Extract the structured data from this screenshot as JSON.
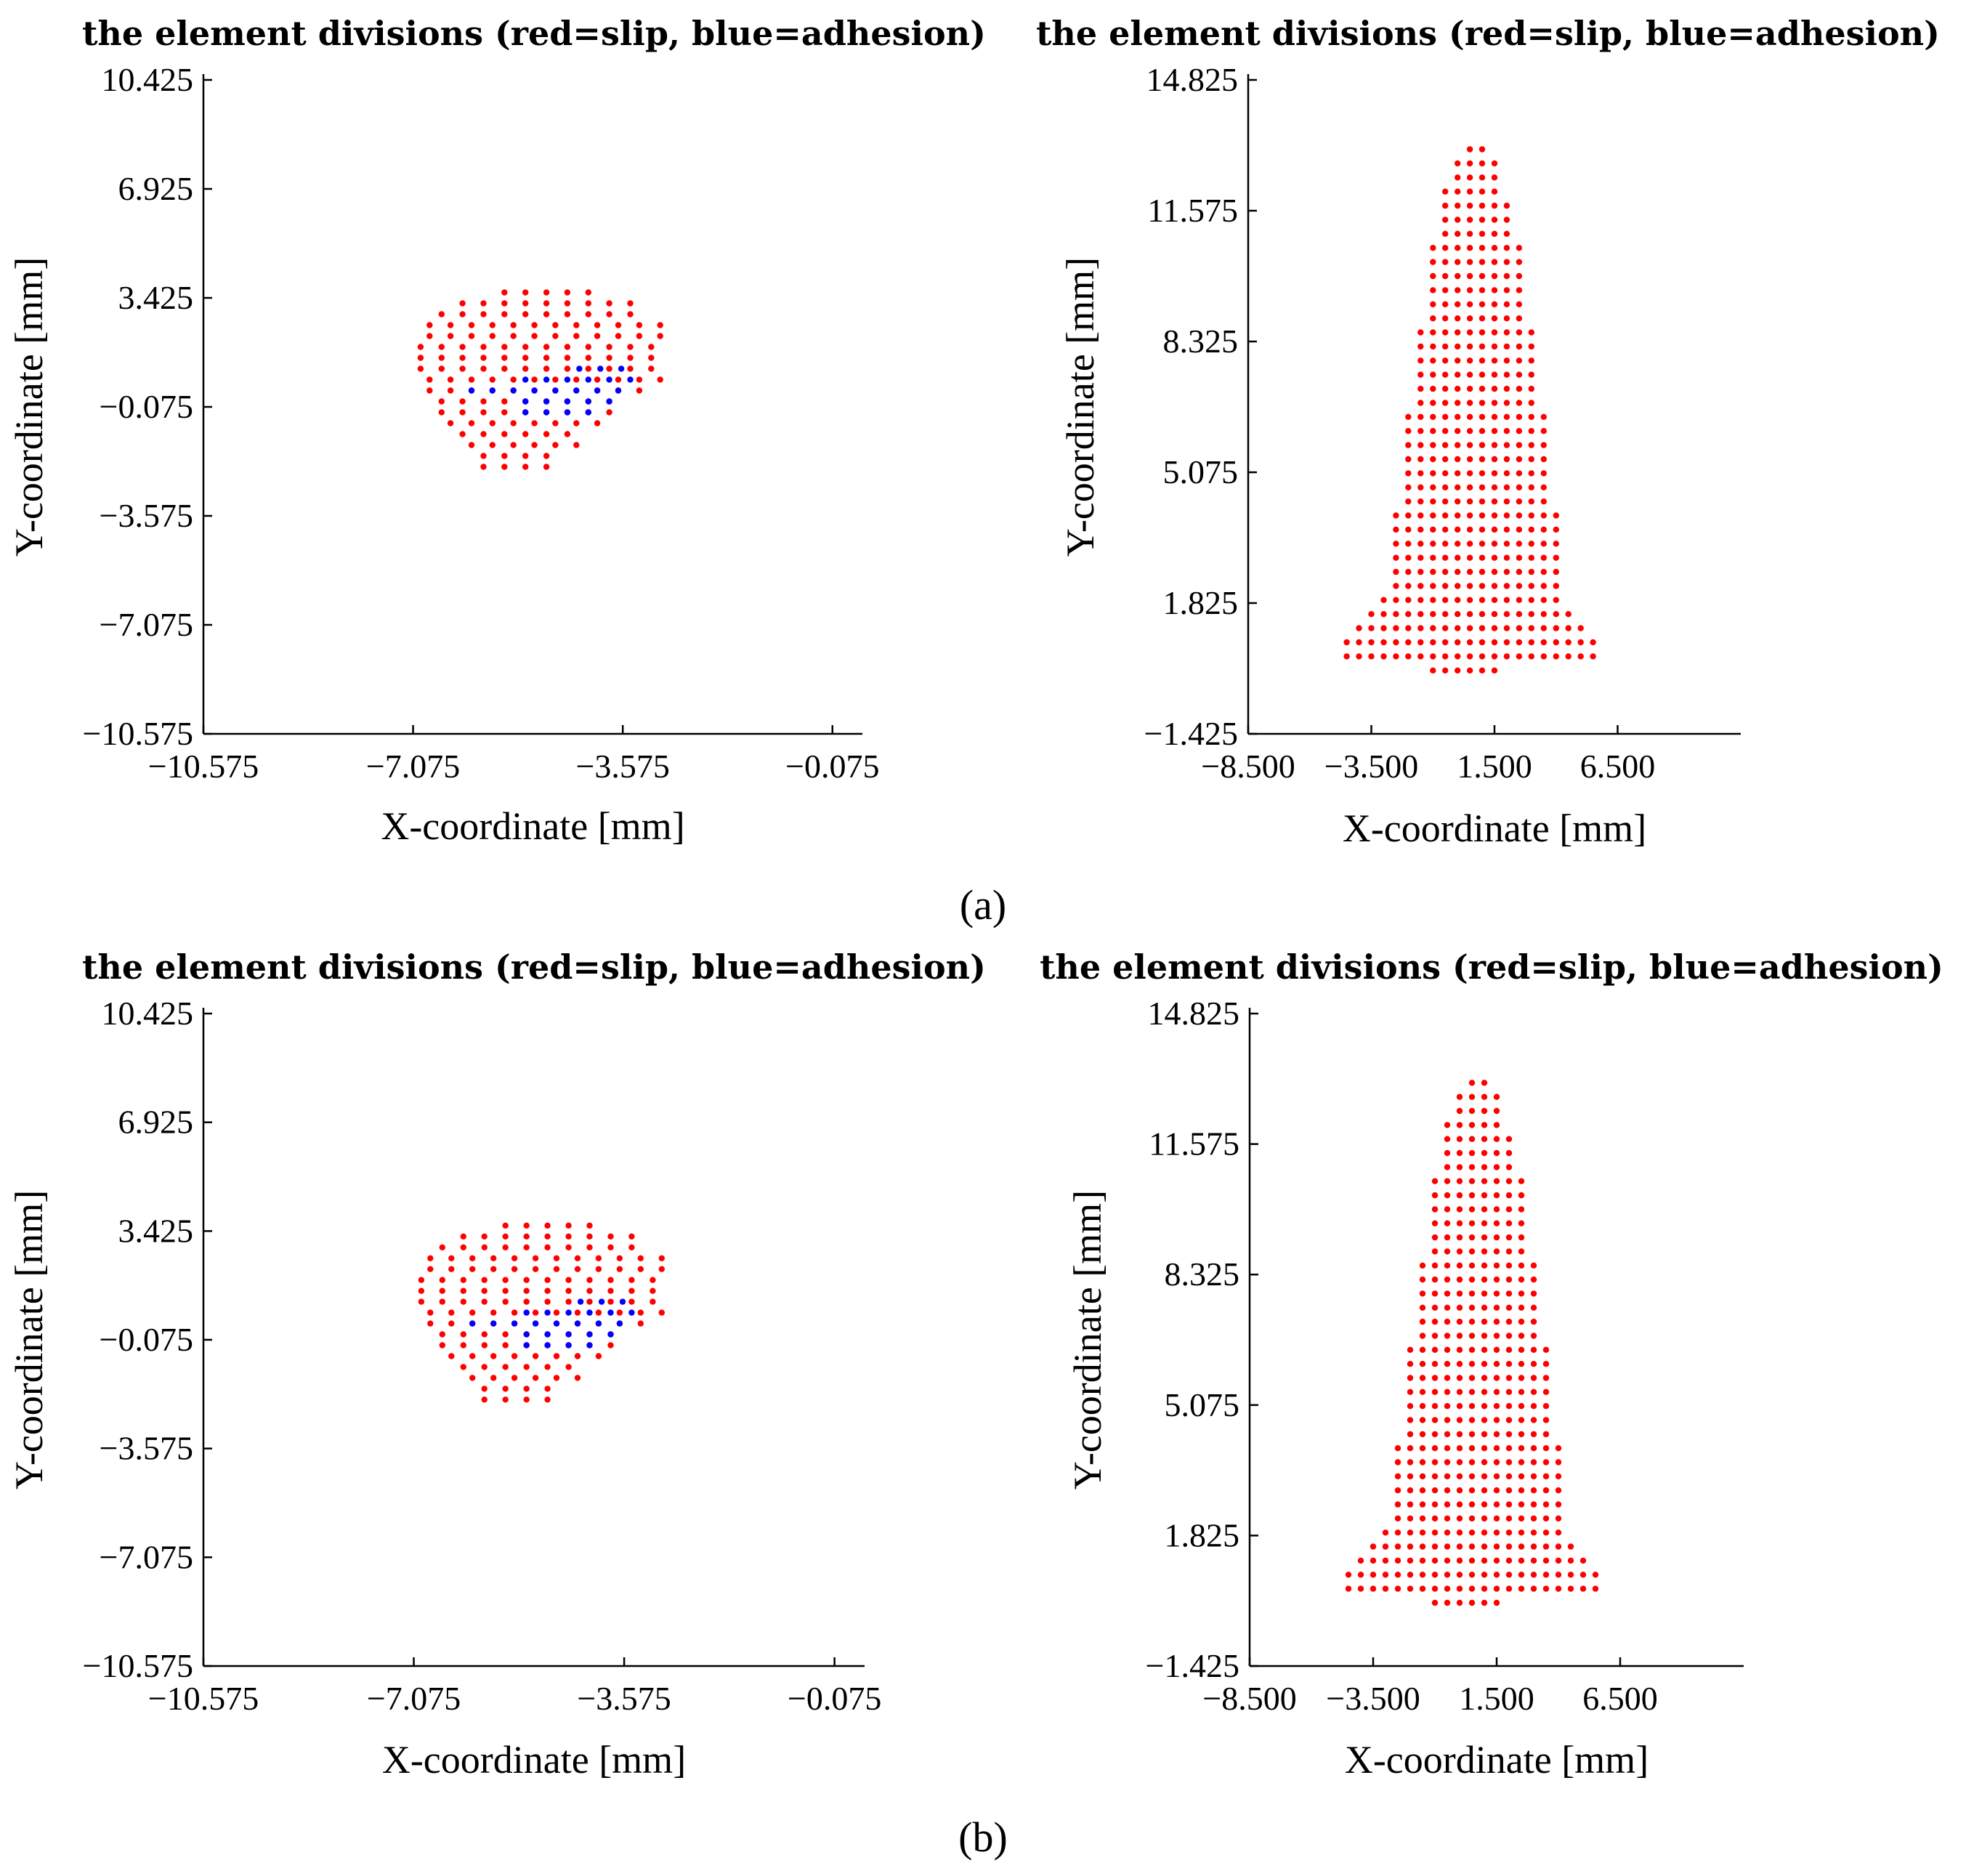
{
  "figure": {
    "panel_labels": [
      "(a)",
      "(b)"
    ]
  },
  "colors": {
    "slip": "#ff0000",
    "adhesion": "#0000ff",
    "axis": "#000000"
  },
  "chart_data": [
    {
      "type": "scatter",
      "id": "a_left",
      "title": "the element divisions (red=slip, blue=adhesion)",
      "xlabel": "X-coordinate [mm]",
      "ylabel": "Y-coordinate [mm]",
      "xlim": [
        -10.575,
        0.425
      ],
      "ylim": [
        -10.575,
        10.425
      ],
      "xticks": [
        -10.575,
        -7.075,
        -3.575,
        -0.075
      ],
      "xtick_labels": [
        "−10.575",
        "−7.075",
        "−3.575",
        "−0.075"
      ],
      "yticks": [
        -10.575,
        -7.075,
        -3.575,
        -0.075,
        3.425,
        6.925,
        10.425
      ],
      "ytick_labels": [
        "−10.575",
        "−7.075",
        "−3.575",
        "−0.075",
        "3.425",
        "6.925",
        "10.425"
      ],
      "grid_step": 0.35,
      "slip_rows": [
        {
          "y": 3.6,
          "x": [
            -5.55,
            -4.15
          ]
        },
        {
          "y": 3.25,
          "x": [
            -6.25,
            -3.45
          ]
        },
        {
          "y": 2.9,
          "x": [
            -6.6,
            -3.45
          ]
        },
        {
          "y": 2.55,
          "x": [
            -6.8,
            -3.1
          ]
        },
        {
          "y": 2.2,
          "x": [
            -6.8,
            -3.1
          ]
        },
        {
          "y": 1.85,
          "x": [
            -6.95,
            -3.1
          ]
        },
        {
          "y": 1.5,
          "x": [
            -6.95,
            -3.1
          ]
        },
        {
          "y": 1.15,
          "x": [
            -6.95,
            -3.1
          ]
        },
        {
          "y": 0.8,
          "x": [
            -6.8,
            -3.1
          ]
        },
        {
          "y": 0.45,
          "x": [
            -6.8,
            -3.45
          ]
        },
        {
          "y": 0.1,
          "x": [
            -6.6,
            -3.8
          ]
        },
        {
          "y": -0.25,
          "x": [
            -6.6,
            -3.8
          ]
        },
        {
          "y": -0.6,
          "x": [
            -6.45,
            -4.15
          ]
        },
        {
          "y": -0.95,
          "x": [
            -6.25,
            -4.5
          ]
        },
        {
          "y": -1.3,
          "x": [
            -6.1,
            -4.5
          ]
        },
        {
          "y": -1.65,
          "x": [
            -5.9,
            -4.85
          ]
        },
        {
          "y": -2.0,
          "x": [
            -5.9,
            -4.85
          ]
        }
      ],
      "adhesion_rows": [
        {
          "y": 1.15,
          "x": [
            -4.3,
            -3.45
          ]
        },
        {
          "y": 0.8,
          "x": [
            -5.2,
            -3.45
          ]
        },
        {
          "y": 0.45,
          "x": [
            -6.1,
            -3.8
          ]
        },
        {
          "y": 0.1,
          "x": [
            -5.2,
            -3.8
          ]
        },
        {
          "y": -0.25,
          "x": [
            -5.2,
            -4.15
          ]
        }
      ]
    },
    {
      "type": "scatter",
      "id": "a_right",
      "title": "the element divisions (red=slip, blue=adhesion)",
      "xlabel": "X-coordinate [mm]",
      "ylabel": "Y-coordinate [mm]",
      "xlim": [
        -8.5,
        11.5
      ],
      "ylim": [
        -1.425,
        14.825
      ],
      "xticks": [
        -8.5,
        -3.5,
        1.5,
        6.5
      ],
      "xtick_labels": [
        "−8.500",
        "−3.500",
        "1.500",
        "6.500"
      ],
      "yticks": [
        -1.425,
        1.825,
        5.075,
        8.325,
        11.575,
        14.825
      ],
      "ytick_labels": [
        "−1.425",
        "1.825",
        "5.075",
        "8.325",
        "11.575",
        "14.825"
      ],
      "grid_step": 0.5,
      "slip_rows": [
        {
          "y": 13.1,
          "x": [
            0.5,
            1.0
          ]
        },
        {
          "y": 12.75,
          "x": [
            0,
            1.5
          ]
        },
        {
          "y": 12.4,
          "x": [
            0,
            1.5
          ]
        },
        {
          "y": 12.05,
          "x": [
            -0.5,
            1.5
          ]
        },
        {
          "y": 11.7,
          "x": [
            -0.5,
            2.0
          ]
        },
        {
          "y": 11.35,
          "x": [
            -0.5,
            2.0
          ]
        },
        {
          "y": 11.0,
          "x": [
            -0.5,
            2.0
          ]
        },
        {
          "y": 10.65,
          "x": [
            -1.0,
            2.5
          ]
        },
        {
          "y": 10.3,
          "x": [
            -1.0,
            2.5
          ]
        },
        {
          "y": 9.95,
          "x": [
            -1.0,
            2.5
          ]
        },
        {
          "y": 9.6,
          "x": [
            -1.0,
            2.5
          ]
        },
        {
          "y": 9.25,
          "x": [
            -1.0,
            2.5
          ]
        },
        {
          "y": 8.9,
          "x": [
            -1.0,
            2.5
          ]
        },
        {
          "y": 8.55,
          "x": [
            -1.5,
            3.0
          ]
        },
        {
          "y": 8.2,
          "x": [
            -1.5,
            3.0
          ]
        },
        {
          "y": 7.85,
          "x": [
            -1.5,
            3.0
          ]
        },
        {
          "y": 7.5,
          "x": [
            -1.5,
            3.0
          ]
        },
        {
          "y": 7.15,
          "x": [
            -1.5,
            3.0
          ]
        },
        {
          "y": 6.8,
          "x": [
            -1.5,
            3.0
          ]
        },
        {
          "y": 6.45,
          "x": [
            -2.0,
            3.5
          ]
        },
        {
          "y": 6.1,
          "x": [
            -2.0,
            3.5
          ]
        },
        {
          "y": 5.75,
          "x": [
            -2.0,
            3.5
          ]
        },
        {
          "y": 5.4,
          "x": [
            -2.0,
            3.5
          ]
        },
        {
          "y": 5.05,
          "x": [
            -2.0,
            3.5
          ]
        },
        {
          "y": 4.7,
          "x": [
            -2.0,
            3.5
          ]
        },
        {
          "y": 4.35,
          "x": [
            -2.0,
            3.5
          ]
        },
        {
          "y": 4.0,
          "x": [
            -2.5,
            4.0
          ]
        },
        {
          "y": 3.65,
          "x": [
            -2.5,
            4.0
          ]
        },
        {
          "y": 3.3,
          "x": [
            -2.5,
            4.0
          ]
        },
        {
          "y": 2.95,
          "x": [
            -2.5,
            4.0
          ]
        },
        {
          "y": 2.6,
          "x": [
            -2.5,
            4.0
          ]
        },
        {
          "y": 2.25,
          "x": [
            -2.5,
            4.0
          ]
        },
        {
          "y": 1.9,
          "x": [
            -3.0,
            4.0
          ]
        },
        {
          "y": 1.55,
          "x": [
            -3.5,
            4.5
          ]
        },
        {
          "y": 1.2,
          "x": [
            -4.0,
            5.0
          ]
        },
        {
          "y": 0.85,
          "x": [
            -4.5,
            5.5
          ]
        },
        {
          "y": 0.5,
          "x": [
            -4.5,
            5.5
          ]
        },
        {
          "y": 0.15,
          "x": [
            -1.0,
            1.5
          ]
        }
      ],
      "adhesion_rows": []
    },
    {
      "type": "scatter",
      "id": "b_left",
      "title": "the element divisions (red=slip, blue=adhesion)",
      "xlabel": "X-coordinate [mm]",
      "ylabel": "Y-coordinate [mm]",
      "xlim": [
        -10.575,
        0.425
      ],
      "ylim": [
        -10.575,
        10.425
      ],
      "xticks": [
        -10.575,
        -7.075,
        -3.575,
        -0.075
      ],
      "xtick_labels": [
        "−10.575",
        "−7.075",
        "−3.575",
        "−0.075"
      ],
      "yticks": [
        -10.575,
        -7.075,
        -3.575,
        -0.075,
        3.425,
        6.925,
        10.425
      ],
      "ytick_labels": [
        "−10.575",
        "−7.075",
        "−3.575",
        "−0.075",
        "3.425",
        "6.925",
        "10.425"
      ],
      "grid_step": 0.35,
      "slip_rows": [
        {
          "y": 3.6,
          "x": [
            -5.55,
            -4.15
          ]
        },
        {
          "y": 3.25,
          "x": [
            -6.25,
            -3.45
          ]
        },
        {
          "y": 2.9,
          "x": [
            -6.6,
            -3.45
          ]
        },
        {
          "y": 2.55,
          "x": [
            -6.8,
            -3.1
          ]
        },
        {
          "y": 2.2,
          "x": [
            -6.8,
            -3.1
          ]
        },
        {
          "y": 1.85,
          "x": [
            -6.95,
            -3.1
          ]
        },
        {
          "y": 1.5,
          "x": [
            -6.95,
            -3.1
          ]
        },
        {
          "y": 1.15,
          "x": [
            -6.95,
            -3.1
          ]
        },
        {
          "y": 0.8,
          "x": [
            -6.8,
            -3.1
          ]
        },
        {
          "y": 0.45,
          "x": [
            -6.8,
            -3.45
          ]
        },
        {
          "y": 0.1,
          "x": [
            -6.6,
            -3.8
          ]
        },
        {
          "y": -0.25,
          "x": [
            -6.6,
            -3.8
          ]
        },
        {
          "y": -0.6,
          "x": [
            -6.45,
            -4.15
          ]
        },
        {
          "y": -0.95,
          "x": [
            -6.25,
            -4.5
          ]
        },
        {
          "y": -1.3,
          "x": [
            -6.1,
            -4.5
          ]
        },
        {
          "y": -1.65,
          "x": [
            -5.9,
            -4.85
          ]
        },
        {
          "y": -2.0,
          "x": [
            -5.9,
            -4.85
          ]
        }
      ],
      "adhesion_rows": [
        {
          "y": 1.15,
          "x": [
            -4.3,
            -3.45
          ]
        },
        {
          "y": 0.8,
          "x": [
            -5.2,
            -3.45
          ]
        },
        {
          "y": 0.45,
          "x": [
            -6.1,
            -3.8
          ]
        },
        {
          "y": 0.1,
          "x": [
            -5.2,
            -3.8
          ]
        },
        {
          "y": -0.25,
          "x": [
            -5.2,
            -4.15
          ]
        }
      ]
    },
    {
      "type": "scatter",
      "id": "b_right",
      "title": "the element divisions (red=slip, blue=adhesion)",
      "xlabel": "X-coordinate [mm]",
      "ylabel": "Y-coordinate [mm]",
      "xlim": [
        -8.5,
        11.5
      ],
      "ylim": [
        -1.425,
        14.825
      ],
      "xticks": [
        -8.5,
        -3.5,
        1.5,
        6.5
      ],
      "xtick_labels": [
        "−8.500",
        "−3.500",
        "1.500",
        "6.500"
      ],
      "yticks": [
        -1.425,
        1.825,
        5.075,
        8.325,
        11.575,
        14.825
      ],
      "ytick_labels": [
        "−1.425",
        "1.825",
        "5.075",
        "8.325",
        "11.575",
        "14.825"
      ],
      "grid_step": 0.5,
      "slip_rows": [
        {
          "y": 13.1,
          "x": [
            0.5,
            1.0
          ]
        },
        {
          "y": 12.75,
          "x": [
            0,
            1.5
          ]
        },
        {
          "y": 12.4,
          "x": [
            0,
            1.5
          ]
        },
        {
          "y": 12.05,
          "x": [
            -0.5,
            1.5
          ]
        },
        {
          "y": 11.7,
          "x": [
            -0.5,
            2.0
          ]
        },
        {
          "y": 11.35,
          "x": [
            -0.5,
            2.0
          ]
        },
        {
          "y": 11.0,
          "x": [
            -0.5,
            2.0
          ]
        },
        {
          "y": 10.65,
          "x": [
            -1.0,
            2.5
          ]
        },
        {
          "y": 10.3,
          "x": [
            -1.0,
            2.5
          ]
        },
        {
          "y": 9.95,
          "x": [
            -1.0,
            2.5
          ]
        },
        {
          "y": 9.6,
          "x": [
            -1.0,
            2.5
          ]
        },
        {
          "y": 9.25,
          "x": [
            -1.0,
            2.5
          ]
        },
        {
          "y": 8.9,
          "x": [
            -1.0,
            2.5
          ]
        },
        {
          "y": 8.55,
          "x": [
            -1.5,
            3.0
          ]
        },
        {
          "y": 8.2,
          "x": [
            -1.5,
            3.0
          ]
        },
        {
          "y": 7.85,
          "x": [
            -1.5,
            3.0
          ]
        },
        {
          "y": 7.5,
          "x": [
            -1.5,
            3.0
          ]
        },
        {
          "y": 7.15,
          "x": [
            -1.5,
            3.0
          ]
        },
        {
          "y": 6.8,
          "x": [
            -1.5,
            3.0
          ]
        },
        {
          "y": 6.45,
          "x": [
            -2.0,
            3.5
          ]
        },
        {
          "y": 6.1,
          "x": [
            -2.0,
            3.5
          ]
        },
        {
          "y": 5.75,
          "x": [
            -2.0,
            3.5
          ]
        },
        {
          "y": 5.4,
          "x": [
            -2.0,
            3.5
          ]
        },
        {
          "y": 5.05,
          "x": [
            -2.0,
            3.5
          ]
        },
        {
          "y": 4.7,
          "x": [
            -2.0,
            3.5
          ]
        },
        {
          "y": 4.35,
          "x": [
            -2.0,
            3.5
          ]
        },
        {
          "y": 4.0,
          "x": [
            -2.5,
            4.0
          ]
        },
        {
          "y": 3.65,
          "x": [
            -2.5,
            4.0
          ]
        },
        {
          "y": 3.3,
          "x": [
            -2.5,
            4.0
          ]
        },
        {
          "y": 2.95,
          "x": [
            -2.5,
            4.0
          ]
        },
        {
          "y": 2.6,
          "x": [
            -2.5,
            4.0
          ]
        },
        {
          "y": 2.25,
          "x": [
            -2.5,
            4.0
          ]
        },
        {
          "y": 1.9,
          "x": [
            -3.0,
            4.0
          ]
        },
        {
          "y": 1.55,
          "x": [
            -3.5,
            4.5
          ]
        },
        {
          "y": 1.2,
          "x": [
            -4.0,
            5.0
          ]
        },
        {
          "y": 0.85,
          "x": [
            -4.5,
            5.5
          ]
        },
        {
          "y": 0.5,
          "x": [
            -4.5,
            5.5
          ]
        },
        {
          "y": 0.15,
          "x": [
            -1.0,
            1.5
          ]
        }
      ],
      "adhesion_rows": []
    }
  ]
}
